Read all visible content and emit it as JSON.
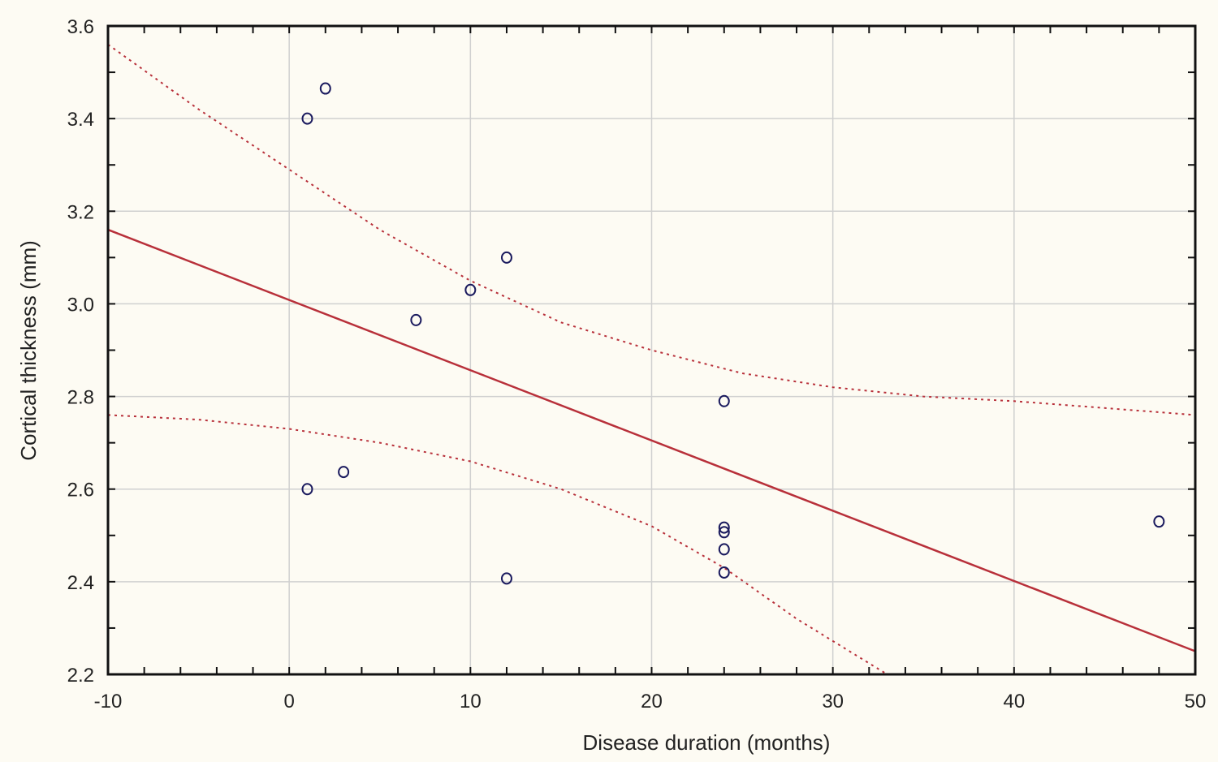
{
  "chart_data": {
    "type": "scatter",
    "title": "",
    "xlabel": "Disease duration (months)",
    "ylabel": "Cortical thickness (mm)",
    "xlim": [
      -10,
      50
    ],
    "ylim": [
      2.2,
      3.6
    ],
    "xticks": [
      "-10",
      "0",
      "10",
      "20",
      "30",
      "40",
      "50"
    ],
    "yticks": [
      "2.2",
      "2.4",
      "2.6",
      "2.8",
      "3.0",
      "3.2",
      "3.4",
      "3.6"
    ],
    "grid": true,
    "points": [
      {
        "x": 1,
        "y": 3.4
      },
      {
        "x": 2,
        "y": 3.465
      },
      {
        "x": 12,
        "y": 3.1
      },
      {
        "x": 10,
        "y": 3.03
      },
      {
        "x": 7,
        "y": 2.965
      },
      {
        "x": 24,
        "y": 2.79
      },
      {
        "x": 1,
        "y": 2.6
      },
      {
        "x": 3,
        "y": 2.637
      },
      {
        "x": 12,
        "y": 2.407
      },
      {
        "x": 24,
        "y": 2.517
      },
      {
        "x": 24,
        "y": 2.507
      },
      {
        "x": 24,
        "y": 2.47
      },
      {
        "x": 24,
        "y": 2.42
      },
      {
        "x": 48,
        "y": 2.53
      }
    ],
    "regression": {
      "x": [
        -10,
        50
      ],
      "y": [
        3.16,
        2.25
      ]
    },
    "upper_ci": {
      "x": [
        -10,
        -5,
        0,
        5,
        10,
        15,
        20,
        25,
        30,
        35,
        40,
        45,
        50
      ],
      "y": [
        3.56,
        3.42,
        3.29,
        3.16,
        3.05,
        2.96,
        2.9,
        2.85,
        2.82,
        2.8,
        2.79,
        2.775,
        2.76
      ]
    },
    "lower_ci": {
      "x": [
        -10,
        -5,
        0,
        5,
        10,
        15,
        20,
        24,
        28,
        33
      ],
      "y": [
        2.76,
        2.75,
        2.73,
        2.7,
        2.66,
        2.6,
        2.52,
        2.43,
        2.32,
        2.2
      ]
    },
    "colors": {
      "line": "#b8303a",
      "points": "#1a1a5e",
      "grid": "#d0d0d0"
    }
  }
}
